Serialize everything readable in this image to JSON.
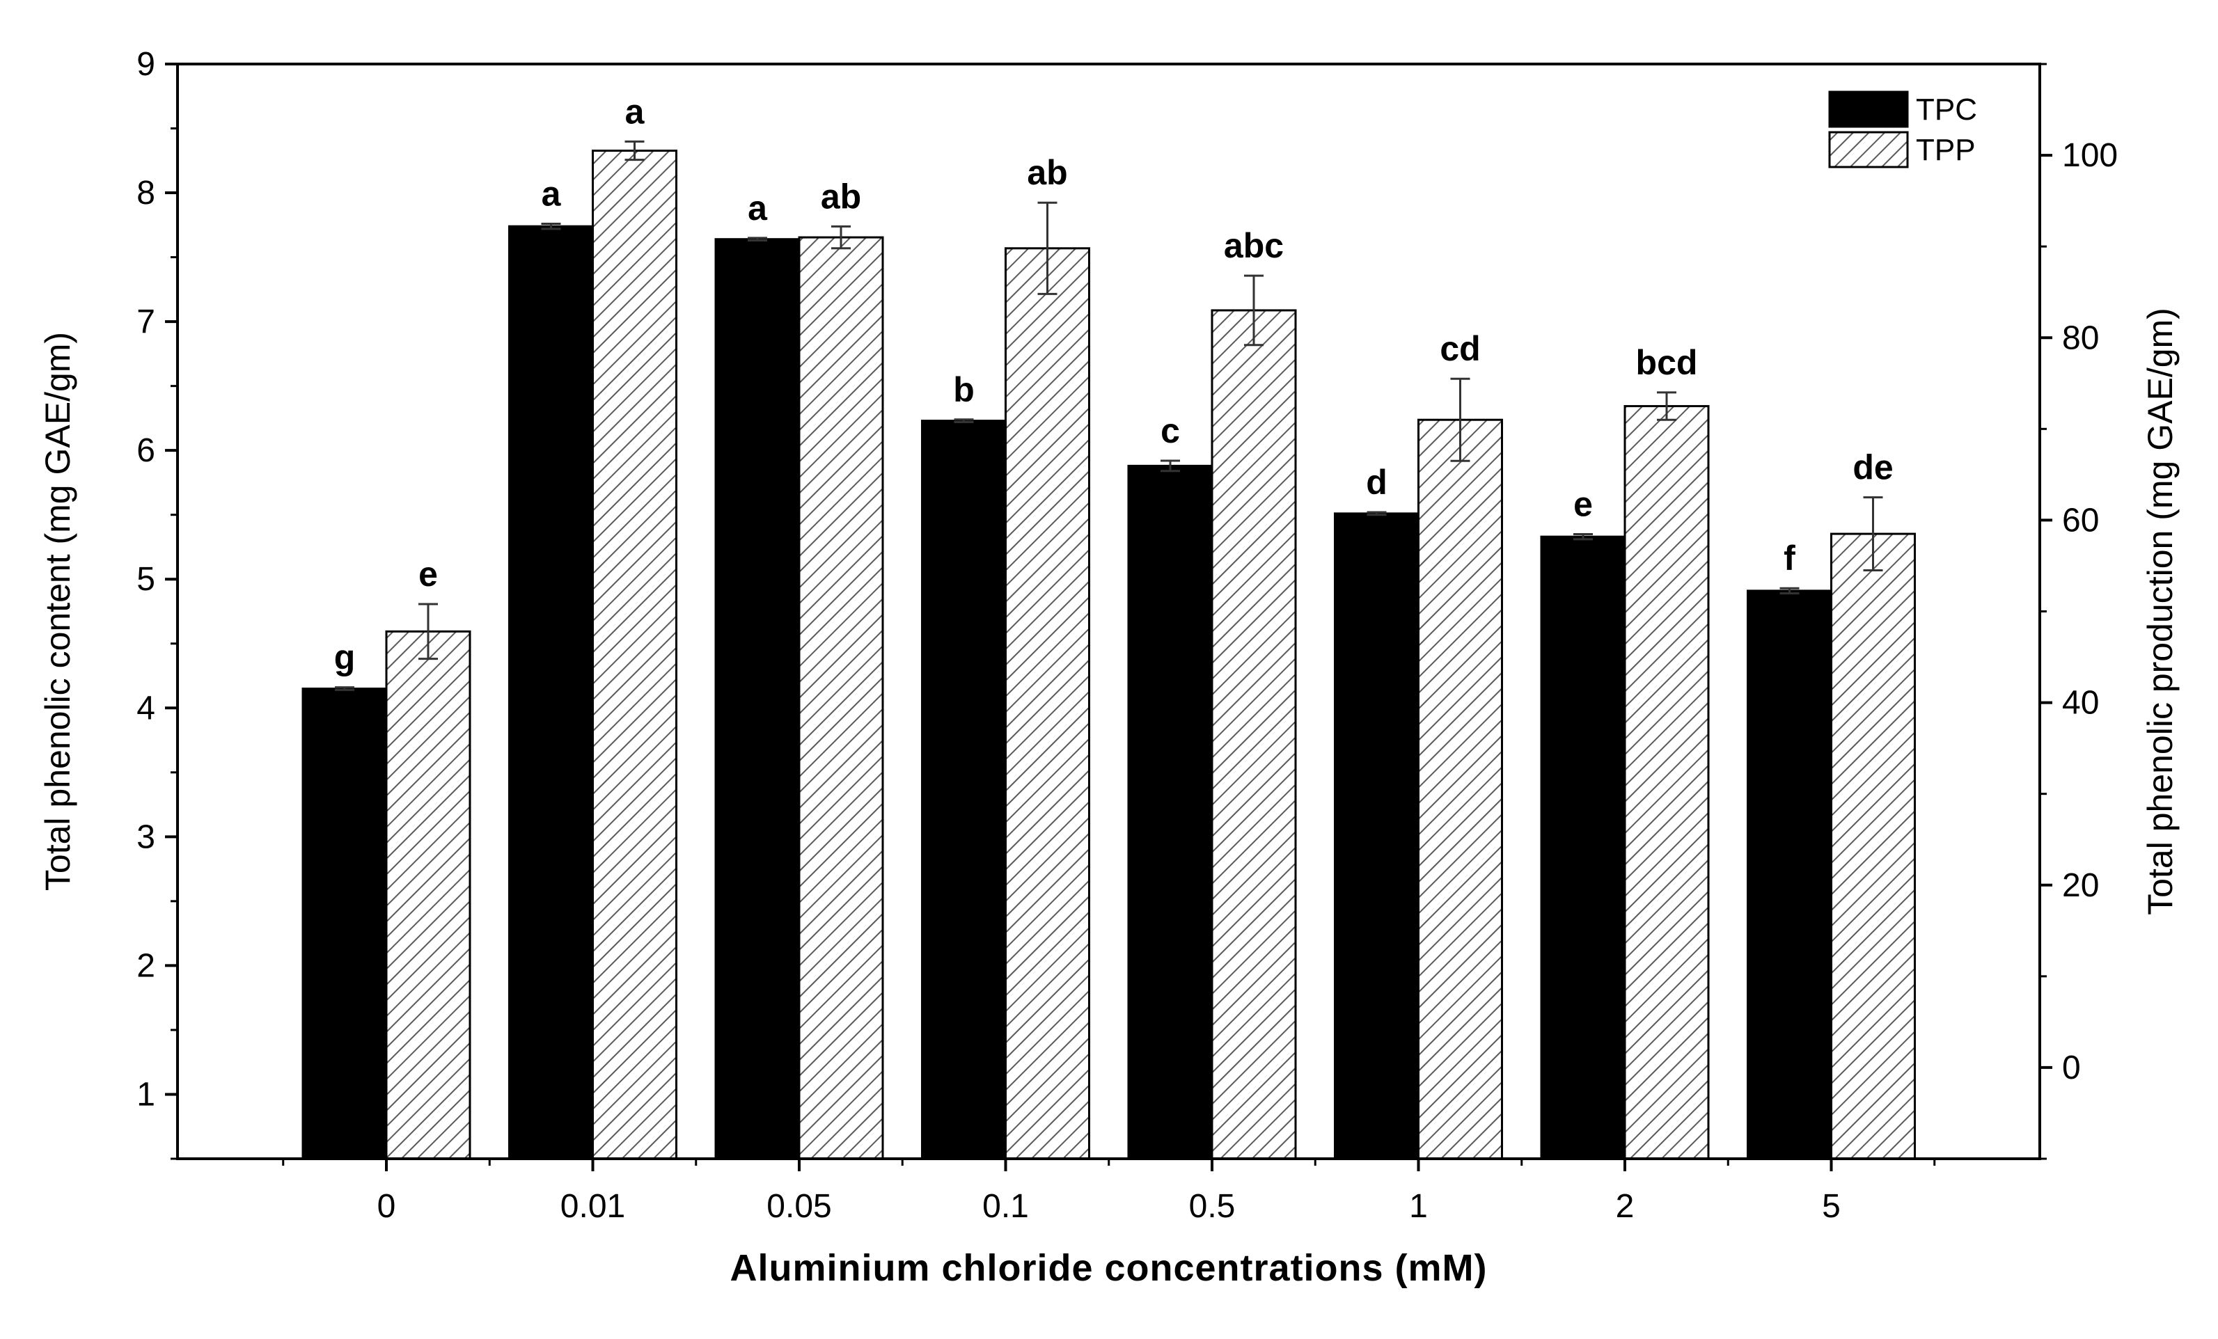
{
  "chart_data": {
    "type": "bar",
    "title": "",
    "xlabel": "Aluminium chloride concentrations (mM)",
    "ylabel": "Total phenolic content (mg GAE/gm)",
    "y2label": "Total phenolic production (mg GAE/gm)",
    "categories": [
      "0",
      "0.01",
      "0.05",
      "0.1",
      "0.5",
      "1",
      "2",
      "5"
    ],
    "ylim": [
      0.5,
      9
    ],
    "y2lim": [
      -10,
      110
    ],
    "yticks": [
      1,
      2,
      3,
      4,
      5,
      6,
      7,
      8,
      9
    ],
    "y2ticks": [
      0,
      20,
      40,
      60,
      80,
      100
    ],
    "legend_position": "top-right",
    "series": [
      {
        "name": "TPC",
        "axis": "left",
        "color": "#000000",
        "pattern": "solid",
        "values": [
          4.15,
          7.74,
          7.64,
          6.23,
          5.88,
          5.51,
          5.33,
          4.91
        ],
        "errors": [
          0.01,
          0.02,
          0.01,
          0.01,
          0.04,
          0.01,
          0.02,
          0.02
        ],
        "labels": [
          "g",
          "a",
          "a",
          "b",
          "c",
          "d",
          "e",
          "f"
        ]
      },
      {
        "name": "TPP",
        "axis": "right",
        "color": "#555555",
        "pattern": "hatched",
        "values": [
          47.8,
          100.5,
          91.0,
          89.8,
          83.0,
          71.0,
          72.5,
          58.5
        ],
        "errors": [
          3.0,
          1.0,
          1.2,
          5.0,
          3.8,
          4.5,
          1.5,
          4.0
        ],
        "labels": [
          "e",
          "a",
          "ab",
          "ab",
          "abc",
          "cd",
          "bcd",
          "de"
        ]
      }
    ]
  }
}
